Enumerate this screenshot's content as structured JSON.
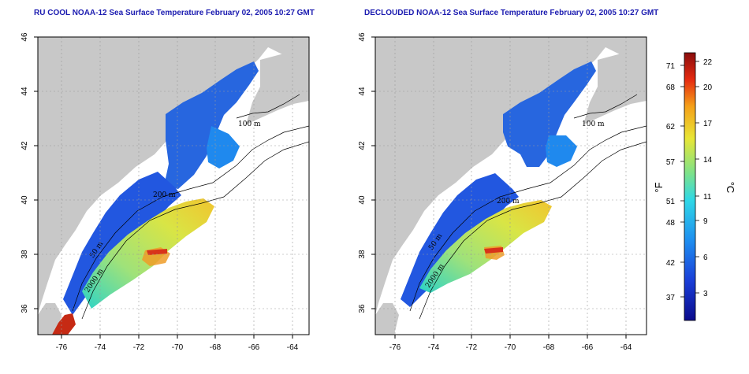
{
  "titles": {
    "left": "RU COOL NOAA-12 Sea Surface Temperature February 02, 2005 10:27 GMT",
    "right": "DECLOUDED NOAA-12 Sea Surface Temperature February 02, 2005 10:27 GMT"
  },
  "axes": {
    "lon_ticks": [
      "-76",
      "-74",
      "-72",
      "-70",
      "-68",
      "-66",
      "-64"
    ],
    "lat_ticks": [
      "46",
      "44",
      "42",
      "40",
      "38",
      "36"
    ]
  },
  "contour_labels": {
    "left": [
      "100 m",
      "200 m",
      "50 m",
      "2000 m"
    ],
    "right": [
      "100 m",
      "200 m",
      "50 m",
      "2000 m"
    ]
  },
  "colorbar": {
    "fahrenheit_ticks": [
      "71",
      "68",
      "62",
      "57",
      "51",
      "48",
      "42",
      "37"
    ],
    "celsius_ticks": [
      "22",
      "20",
      "17",
      "14",
      "11",
      "9",
      "6",
      "3"
    ],
    "fahrenheit_unit": "°F",
    "celsius_unit": "°C"
  },
  "colors": {
    "land": "#c8c8c8",
    "ocean_background": "#ffffff",
    "title": "#1b1bb0",
    "gridline": "#9a9a9a"
  }
}
